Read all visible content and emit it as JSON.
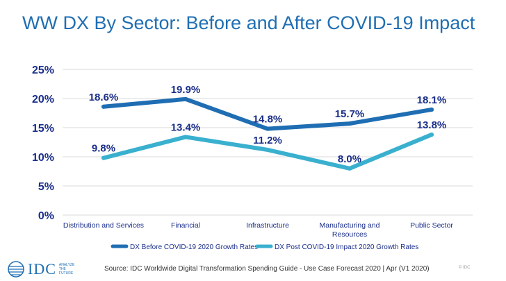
{
  "title": "WW DX By Sector: Before and After COVID-19 Impact",
  "colors": {
    "title": "#1f6eb3",
    "series_before": "#1f6eb3",
    "series_after": "#3ab0cf",
    "labels": "#1a2e8a",
    "grid": "#d9d9d9"
  },
  "chart_data": {
    "type": "line",
    "categories": [
      "Distribution and Services",
      "Financial",
      "Infrastructure",
      "Manufacturing and Resources",
      "Public Sector"
    ],
    "series": [
      {
        "name": "DX Before COVID-19 2020 Growth Rates",
        "values": [
          18.6,
          19.9,
          14.8,
          15.7,
          18.1
        ],
        "labels": [
          "18.6%",
          "19.9%",
          "14.8%",
          "15.7%",
          "18.1%"
        ]
      },
      {
        "name": "DX Post COVID-19 Impact 2020 Growth Rates",
        "values": [
          9.8,
          13.4,
          11.2,
          8.0,
          13.8
        ],
        "labels": [
          "9.8%",
          "13.4%",
          "11.2%",
          "8.0%",
          "13.8%"
        ]
      }
    ],
    "yticks": [
      "0%",
      "5%",
      "10%",
      "15%",
      "20%",
      "25%"
    ],
    "ylim": [
      0,
      25
    ],
    "grid": true,
    "legend": "bottom"
  },
  "footer": {
    "logo": "IDC",
    "logo_tagline": "ANALYZE THE FUTURE",
    "source": "Source: IDC Worldwide Digital Transformation Spending Guide - Use Case Forecast 2020 | Apr (V1 2020)",
    "copyright": "© IDC"
  }
}
